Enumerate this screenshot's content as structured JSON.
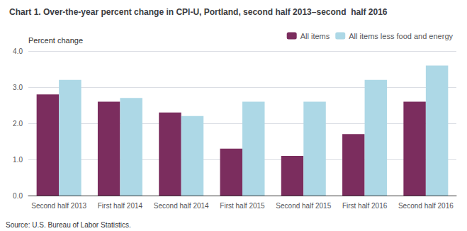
{
  "chart_data": {
    "type": "bar",
    "title": "Chart 1. Over-the-year percent change in CPI-U, Portland, second half 2013–second  half 2016",
    "ylabel": "Percent change",
    "annotations": [
      "Source: U.S. Bureau of Labor Statistics."
    ],
    "categories": [
      "Second half 2013",
      "First half 2014",
      "Second half 2014",
      "First half 2015",
      "Second half 2015",
      "First half 2016",
      "Second half 2016"
    ],
    "series": [
      {
        "name": "All items",
        "color": "#7B2D5E",
        "values": [
          2.8,
          2.6,
          2.3,
          1.3,
          1.1,
          1.7,
          2.6
        ]
      },
      {
        "name": "All items less food and energy",
        "color": "#ADD8E6",
        "values": [
          3.2,
          2.7,
          2.2,
          2.6,
          2.6,
          3.2,
          3.6
        ]
      }
    ],
    "ylim": [
      0.0,
      4.0
    ],
    "yticks": [
      {
        "value": 0,
        "label": "0.0"
      },
      {
        "value": 1,
        "label": "1.0"
      },
      {
        "value": 2,
        "label": "2.0"
      },
      {
        "value": 3,
        "label": "3.0"
      },
      {
        "value": 4,
        "label": "4.0"
      }
    ],
    "grid": true,
    "legend": "top"
  }
}
